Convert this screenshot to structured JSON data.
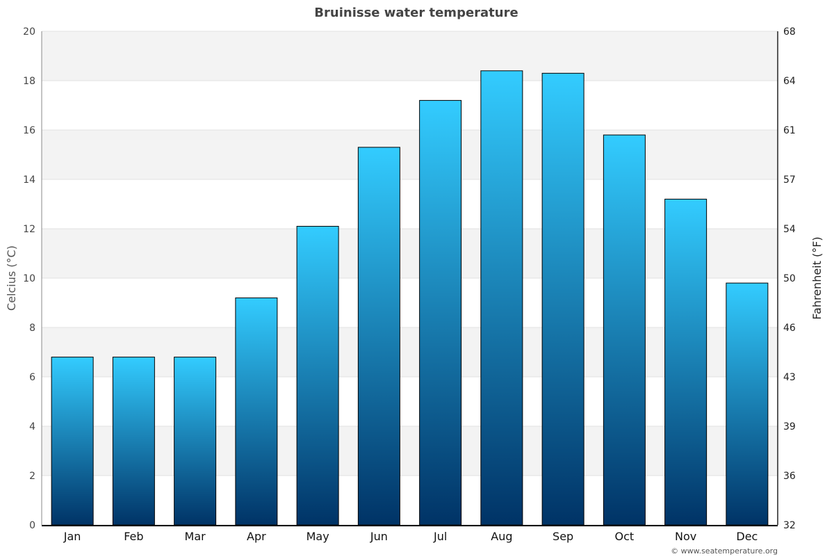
{
  "chart_data": {
    "type": "bar",
    "title": "Bruinisse water temperature",
    "ylabel": "Celcius (°C)",
    "ylabel_right": "Fahrenheit (°F)",
    "categories": [
      "Jan",
      "Feb",
      "Mar",
      "Apr",
      "May",
      "Jun",
      "Jul",
      "Aug",
      "Sep",
      "Oct",
      "Nov",
      "Dec"
    ],
    "values": [
      6.8,
      6.8,
      6.8,
      9.2,
      12.1,
      15.3,
      17.2,
      18.4,
      18.3,
      15.8,
      13.2,
      9.8
    ],
    "ylim": [
      0,
      20
    ],
    "yticks": [
      0,
      2,
      4,
      6,
      8,
      10,
      12,
      14,
      16,
      18,
      20
    ],
    "yticks_right": [
      "32",
      "36",
      "39",
      "43",
      "46",
      "50",
      "54",
      "57",
      "61",
      "64",
      "68"
    ],
    "grid": true,
    "bar_gradient": {
      "top": "#33ccff",
      "bottom": "#003366"
    },
    "band_color": "#f3f3f3"
  },
  "credit": "© www.seatemperature.org"
}
